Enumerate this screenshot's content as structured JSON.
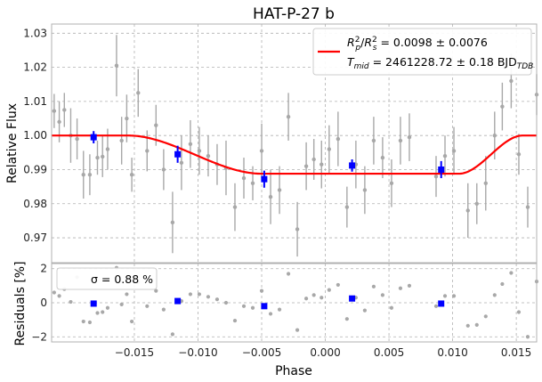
{
  "chart_data": [
    {
      "type": "scatter",
      "title": "HAT-P-27 b",
      "xlabel": "",
      "ylabel": "Relative Flux",
      "xlim": [
        -0.0215,
        0.0166
      ],
      "ylim": [
        0.9627,
        1.0327
      ],
      "xticks": [],
      "yticks": [
        0.97,
        0.98,
        0.99,
        1.0,
        1.01,
        1.02,
        1.03
      ],
      "ytick_labels": [
        "0.97",
        "0.98",
        "0.99",
        "1.00",
        "1.01",
        "1.02",
        "1.03"
      ],
      "grid": true,
      "legend": {
        "placement": "top-right",
        "entry_line1": "R_p^2/R_s^2 = 0.0098 ± 0.0076",
        "entry_line2": "T_mid = 2461228.72 ± 0.18 BJD_TDB",
        "line_color": "#ff0000"
      },
      "model": {
        "name": "transit model",
        "color": "#ff0000",
        "depth": 0.0112,
        "t_ingress_start": -0.0155,
        "t_ingress_end": -0.005,
        "t_egress_start": 0.0105,
        "t_egress_end": 0.0155
      },
      "raw_points": [
        {
          "x": -0.0213,
          "y": 1.0072,
          "e": 0.005
        },
        {
          "x": -0.0209,
          "y": 1.004,
          "e": 0.006
        },
        {
          "x": -0.0205,
          "y": 1.0075,
          "e": 0.005
        },
        {
          "x": -0.02,
          "y": 1.0,
          "e": 0.008
        },
        {
          "x": -0.0195,
          "y": 0.999,
          "e": 0.006
        },
        {
          "x": -0.019,
          "y": 0.9885,
          "e": 0.007
        },
        {
          "x": -0.0185,
          "y": 0.9885,
          "e": 0.006
        },
        {
          "x": -0.0179,
          "y": 0.9935,
          "e": 0.005
        },
        {
          "x": -0.0175,
          "y": 0.9938,
          "e": 0.006
        },
        {
          "x": -0.0171,
          "y": 0.996,
          "e": 0.006
        },
        {
          "x": -0.0164,
          "y": 1.0205,
          "e": 0.009
        },
        {
          "x": -0.016,
          "y": 0.9985,
          "e": 0.007
        },
        {
          "x": -0.0156,
          "y": 1.005,
          "e": 0.007
        },
        {
          "x": -0.0152,
          "y": 0.9885,
          "e": 0.005
        },
        {
          "x": -0.0147,
          "y": 1.0125,
          "e": 0.007
        },
        {
          "x": -0.014,
          "y": 0.9955,
          "e": 0.006
        },
        {
          "x": -0.0133,
          "y": 1.003,
          "e": 0.006
        },
        {
          "x": -0.0127,
          "y": 0.99,
          "e": 0.006
        },
        {
          "x": -0.012,
          "y": 0.9745,
          "e": 0.009
        },
        {
          "x": -0.0113,
          "y": 0.992,
          "e": 0.008
        },
        {
          "x": -0.0106,
          "y": 0.9975,
          "e": 0.007
        },
        {
          "x": -0.0099,
          "y": 0.9955,
          "e": 0.007
        },
        {
          "x": -0.0092,
          "y": 0.994,
          "e": 0.006
        },
        {
          "x": -0.0085,
          "y": 0.9915,
          "e": 0.006
        },
        {
          "x": -0.0078,
          "y": 0.9905,
          "e": 0.008
        },
        {
          "x": -0.0071,
          "y": 0.979,
          "e": 0.007
        },
        {
          "x": -0.0064,
          "y": 0.9875,
          "e": 0.006
        },
        {
          "x": -0.0057,
          "y": 0.986,
          "e": 0.005
        },
        {
          "x": -0.005,
          "y": 0.9955,
          "e": 0.008
        },
        {
          "x": -0.0043,
          "y": 0.982,
          "e": 0.008
        },
        {
          "x": -0.0036,
          "y": 0.984,
          "e": 0.007
        },
        {
          "x": -0.0029,
          "y": 1.0055,
          "e": 0.007
        },
        {
          "x": -0.0022,
          "y": 0.9725,
          "e": 0.008
        },
        {
          "x": -0.0015,
          "y": 0.991,
          "e": 0.007
        },
        {
          "x": -0.0009,
          "y": 0.993,
          "e": 0.006
        },
        {
          "x": -0.0003,
          "y": 0.9915,
          "e": 0.007
        },
        {
          "x": 0.0003,
          "y": 0.996,
          "e": 0.007
        },
        {
          "x": 0.001,
          "y": 0.999,
          "e": 0.008
        },
        {
          "x": 0.0017,
          "y": 0.979,
          "e": 0.006
        },
        {
          "x": 0.0024,
          "y": 0.9915,
          "e": 0.007
        },
        {
          "x": 0.0031,
          "y": 0.984,
          "e": 0.007
        },
        {
          "x": 0.0038,
          "y": 0.9985,
          "e": 0.007
        },
        {
          "x": 0.0045,
          "y": 0.9935,
          "e": 0.006
        },
        {
          "x": 0.0052,
          "y": 0.986,
          "e": 0.007
        },
        {
          "x": 0.0059,
          "y": 0.9985,
          "e": 0.007
        },
        {
          "x": 0.0066,
          "y": 0.9995,
          "e": 0.007
        },
        {
          "x": 0.0087,
          "y": 0.988,
          "e": 0.006
        },
        {
          "x": 0.0094,
          "y": 0.994,
          "e": 0.006
        },
        {
          "x": 0.0101,
          "y": 0.9955,
          "e": 0.007
        },
        {
          "x": 0.0112,
          "y": 0.978,
          "e": 0.008
        },
        {
          "x": 0.0119,
          "y": 0.98,
          "e": 0.006
        },
        {
          "x": 0.0126,
          "y": 0.986,
          "e": 0.008
        },
        {
          "x": 0.0133,
          "y": 1.0,
          "e": 0.007
        },
        {
          "x": 0.0139,
          "y": 1.0085,
          "e": 0.007
        },
        {
          "x": 0.0146,
          "y": 1.016,
          "e": 0.008
        },
        {
          "x": 0.0152,
          "y": 0.9945,
          "e": 0.006
        },
        {
          "x": 0.0159,
          "y": 0.979,
          "e": 0.006
        },
        {
          "x": 0.0166,
          "y": 1.012,
          "e": 0.006
        }
      ],
      "binned_points": [
        {
          "x": -0.0182,
          "y": 0.9995,
          "e": 0.0018
        },
        {
          "x": -0.0116,
          "y": 0.9945,
          "e": 0.0025
        },
        {
          "x": -0.0048,
          "y": 0.9872,
          "e": 0.0025
        },
        {
          "x": 0.0021,
          "y": 0.9912,
          "e": 0.0018
        },
        {
          "x": 0.0091,
          "y": 0.99,
          "e": 0.0025
        }
      ]
    },
    {
      "type": "scatter",
      "title": "",
      "xlabel": "Phase",
      "ylabel": "Residuals [%]",
      "xlim": [
        -0.0215,
        0.0166
      ],
      "ylim": [
        -2.3,
        2.3
      ],
      "xticks": [
        -0.015,
        -0.01,
        -0.005,
        0.0,
        0.005,
        0.01,
        0.015
      ],
      "xtick_labels": [
        "−0.015",
        "−0.010",
        "−0.005",
        "0.000",
        "0.005",
        "0.010",
        "0.015"
      ],
      "yticks": [
        -2,
        0,
        2
      ],
      "ytick_labels": [
        "−2",
        "0",
        "2"
      ],
      "grid": true,
      "legend": {
        "placement": "top-left",
        "entry": "σ = 0.88 %"
      },
      "raw_points": [
        {
          "x": -0.0213,
          "y": 0.6
        },
        {
          "x": -0.0209,
          "y": 0.4
        },
        {
          "x": -0.0205,
          "y": 0.8
        },
        {
          "x": -0.02,
          "y": 0.05
        },
        {
          "x": -0.0195,
          "y": 1.5
        },
        {
          "x": -0.019,
          "y": -1.1
        },
        {
          "x": -0.0185,
          "y": -1.15
        },
        {
          "x": -0.0179,
          "y": -0.6
        },
        {
          "x": -0.0175,
          "y": -0.55
        },
        {
          "x": -0.0171,
          "y": -0.3
        },
        {
          "x": -0.0164,
          "y": 2.05
        },
        {
          "x": -0.016,
          "y": -0.1
        },
        {
          "x": -0.0156,
          "y": 0.5
        },
        {
          "x": -0.0152,
          "y": -1.1
        },
        {
          "x": -0.0147,
          "y": 1.2
        },
        {
          "x": -0.014,
          "y": -0.2
        },
        {
          "x": -0.0133,
          "y": 0.7
        },
        {
          "x": -0.0127,
          "y": -0.4
        },
        {
          "x": -0.012,
          "y": -1.85
        },
        {
          "x": -0.0113,
          "y": 0.1
        },
        {
          "x": -0.0106,
          "y": 0.5
        },
        {
          "x": -0.0099,
          "y": 0.5
        },
        {
          "x": -0.0092,
          "y": 0.35
        },
        {
          "x": -0.0085,
          "y": 0.2
        },
        {
          "x": -0.0078,
          "y": 0.0
        },
        {
          "x": -0.0071,
          "y": -1.05
        },
        {
          "x": -0.0064,
          "y": -0.2
        },
        {
          "x": -0.0057,
          "y": -0.3
        },
        {
          "x": -0.005,
          "y": 0.7
        },
        {
          "x": -0.0043,
          "y": -0.65
        },
        {
          "x": -0.0036,
          "y": -0.4
        },
        {
          "x": -0.0029,
          "y": 1.7
        },
        {
          "x": -0.0022,
          "y": -1.6
        },
        {
          "x": -0.0015,
          "y": 0.25
        },
        {
          "x": -0.0009,
          "y": 0.45
        },
        {
          "x": -0.0003,
          "y": 0.3
        },
        {
          "x": 0.0003,
          "y": 0.75
        },
        {
          "x": 0.001,
          "y": 1.05
        },
        {
          "x": 0.0017,
          "y": -0.95
        },
        {
          "x": 0.0024,
          "y": 0.3
        },
        {
          "x": 0.0031,
          "y": -0.45
        },
        {
          "x": 0.0038,
          "y": 0.95
        },
        {
          "x": 0.0045,
          "y": 0.45
        },
        {
          "x": 0.0052,
          "y": -0.3
        },
        {
          "x": 0.0059,
          "y": 0.85
        },
        {
          "x": 0.0066,
          "y": 1.0
        },
        {
          "x": 0.0087,
          "y": -0.2
        },
        {
          "x": 0.0094,
          "y": 0.4
        },
        {
          "x": 0.0101,
          "y": 0.4
        },
        {
          "x": 0.0112,
          "y": -1.35
        },
        {
          "x": 0.0119,
          "y": -1.3
        },
        {
          "x": 0.0126,
          "y": -0.8
        },
        {
          "x": 0.0133,
          "y": 0.45
        },
        {
          "x": 0.0139,
          "y": 1.1
        },
        {
          "x": 0.0146,
          "y": 1.75
        },
        {
          "x": 0.0152,
          "y": -0.55
        },
        {
          "x": 0.0159,
          "y": -2.0
        },
        {
          "x": 0.0166,
          "y": 1.25
        }
      ],
      "binned_points": [
        {
          "x": -0.0182,
          "y": -0.05
        },
        {
          "x": -0.0116,
          "y": 0.1
        },
        {
          "x": -0.0048,
          "y": -0.2
        },
        {
          "x": 0.0021,
          "y": 0.25
        },
        {
          "x": 0.0091,
          "y": -0.05
        }
      ]
    }
  ]
}
